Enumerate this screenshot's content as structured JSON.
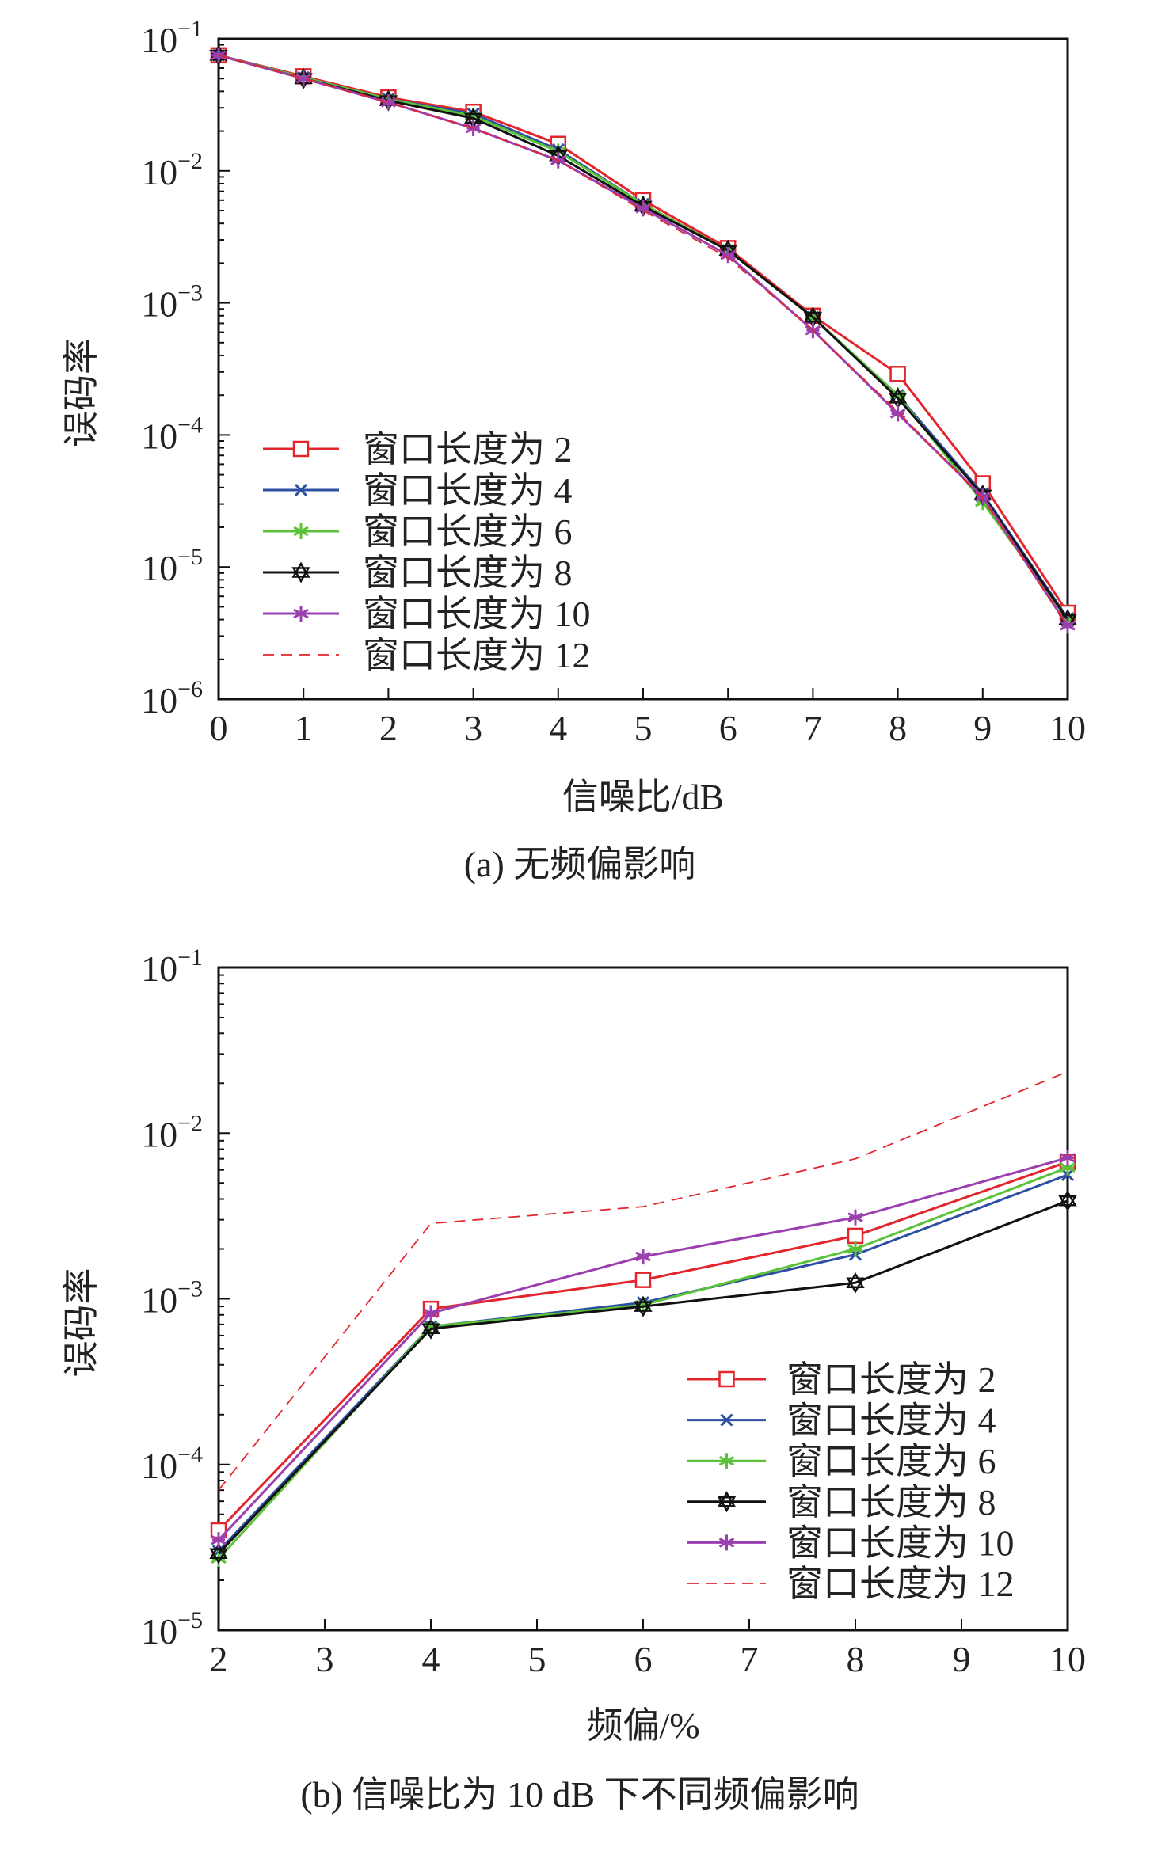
{
  "chart_data": [
    {
      "type": "line",
      "title": "(a) 无频偏影响",
      "xlabel": "信噪比/dB",
      "ylabel": "误码率",
      "yscale": "log",
      "xlim": [
        0,
        10
      ],
      "ylim": [
        1e-06,
        0.1
      ],
      "x_ticks": [
        0,
        1,
        2,
        3,
        4,
        5,
        6,
        7,
        8,
        9,
        10
      ],
      "y_tick_exponents": [
        -1,
        -2,
        -3,
        -4,
        -5,
        -6
      ],
      "legend_position": "bottom-left",
      "x": [
        0,
        1,
        2,
        3,
        4,
        5,
        6,
        7,
        8,
        9,
        10
      ],
      "series": [
        {
          "name": "窗口长度为 2",
          "color": "#e3262d",
          "marker": "square",
          "dash": false,
          "values": [
            0.075,
            0.052,
            0.036,
            0.028,
            0.016,
            0.006,
            0.0026,
            0.0008,
            0.00029,
            4.3e-05,
            4.5e-06
          ]
        },
        {
          "name": "窗口长度为 4",
          "color": "#2c4ea3",
          "marker": "x",
          "dash": false,
          "values": [
            0.075,
            0.051,
            0.035,
            0.027,
            0.0145,
            0.0056,
            0.0025,
            0.00078,
            0.0002,
            3.6e-05,
            4.1e-06
          ]
        },
        {
          "name": "窗口长度为 6",
          "color": "#5cc23a",
          "marker": "asterisk",
          "dash": false,
          "values": [
            0.075,
            0.051,
            0.035,
            0.026,
            0.014,
            0.0056,
            0.0025,
            0.00078,
            0.0002,
            3.1e-05,
            4e-06
          ]
        },
        {
          "name": "窗口长度为 8",
          "color": "#111111",
          "marker": "hexagram",
          "dash": false,
          "values": [
            0.075,
            0.05,
            0.034,
            0.025,
            0.013,
            0.0054,
            0.0025,
            0.00078,
            0.00019,
            3.5e-05,
            4e-06
          ]
        },
        {
          "name": "窗口长度为 10",
          "color": "#9b3fb0",
          "marker": "asterisk",
          "dash": false,
          "values": [
            0.075,
            0.05,
            0.033,
            0.021,
            0.012,
            0.0052,
            0.0023,
            0.00062,
            0.000145,
            3.4e-05,
            3.6e-06
          ]
        },
        {
          "name": "窗口长度为 12",
          "color": "#e3262d",
          "marker": "none",
          "dash": true,
          "values": [
            0.075,
            0.05,
            0.033,
            0.021,
            0.012,
            0.005,
            0.0022,
            0.00062,
            0.00015,
            3.3e-05,
            3.6e-06
          ]
        }
      ]
    },
    {
      "type": "line",
      "title": "(b) 信噪比为 10 dB 下不同频偏影响",
      "xlabel": "频偏/%",
      "ylabel": "误码率",
      "yscale": "log",
      "xlim": [
        2,
        10
      ],
      "ylim": [
        1e-05,
        0.1
      ],
      "x_ticks": [
        2,
        3,
        4,
        5,
        6,
        7,
        8,
        9,
        10
      ],
      "y_tick_exponents": [
        -1,
        -2,
        -3,
        -4,
        -5
      ],
      "legend_position": "bottom-right",
      "x": [
        2,
        4,
        6,
        8,
        10
      ],
      "series": [
        {
          "name": "窗口长度为 2",
          "color": "#e3262d",
          "marker": "square",
          "dash": false,
          "values": [
            4e-05,
            0.00087,
            0.0013,
            0.0024,
            0.0067
          ]
        },
        {
          "name": "窗口长度为 4",
          "color": "#2c4ea3",
          "marker": "x",
          "dash": false,
          "values": [
            3e-05,
            0.00068,
            0.00095,
            0.00185,
            0.0056
          ]
        },
        {
          "name": "窗口长度为 6",
          "color": "#5cc23a",
          "marker": "asterisk",
          "dash": false,
          "values": [
            2.7e-05,
            0.00068,
            0.00092,
            0.002,
            0.0062
          ]
        },
        {
          "name": "窗口长度为 8",
          "color": "#111111",
          "marker": "hexagram",
          "dash": false,
          "values": [
            2.9e-05,
            0.00066,
            0.0009,
            0.00125,
            0.0039
          ]
        },
        {
          "name": "窗口长度为 10",
          "color": "#9b3fb0",
          "marker": "asterisk",
          "dash": false,
          "values": [
            3.5e-05,
            0.00082,
            0.0018,
            0.0031,
            0.0071
          ]
        },
        {
          "name": "窗口长度为 12",
          "color": "#e3262d",
          "marker": "none",
          "dash": true,
          "values": [
            7e-05,
            0.00285,
            0.0036,
            0.007,
            0.0235
          ]
        }
      ]
    }
  ]
}
